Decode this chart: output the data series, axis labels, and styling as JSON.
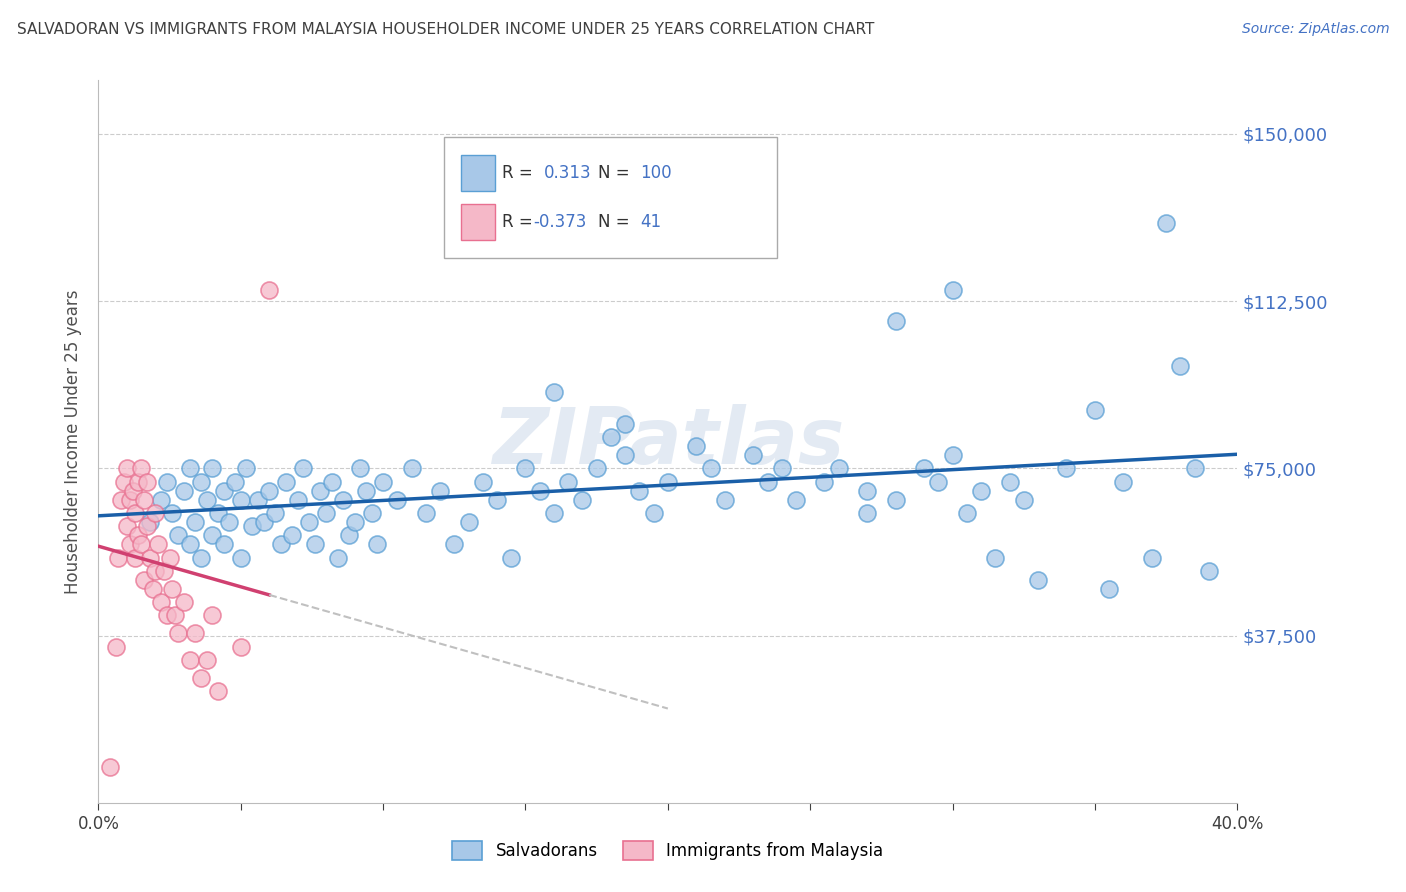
{
  "title": "SALVADORAN VS IMMIGRANTS FROM MALAYSIA HOUSEHOLDER INCOME UNDER 25 YEARS CORRELATION CHART",
  "source": "Source: ZipAtlas.com",
  "ylabel": "Householder Income Under 25 years",
  "xlim": [
    0.0,
    0.4
  ],
  "ylim": [
    0,
    162000
  ],
  "yticks": [
    0,
    37500,
    75000,
    112500,
    150000
  ],
  "ytick_labels_right": [
    "",
    "$37,500",
    "$75,000",
    "$112,500",
    "$150,000"
  ],
  "xticks": [
    0.0,
    0.05,
    0.1,
    0.15,
    0.2,
    0.25,
    0.3,
    0.35,
    0.4
  ],
  "blue_color": "#a8c8e8",
  "pink_color": "#f5b8c8",
  "blue_edge": "#5a9fd4",
  "pink_edge": "#e87090",
  "trend_blue": "#1a5fa8",
  "trend_pink": "#d04070",
  "trend_gray": "#c0c0c0",
  "watermark": "ZIPatlas",
  "blue_scatter_x": [
    0.018,
    0.022,
    0.024,
    0.026,
    0.028,
    0.03,
    0.032,
    0.032,
    0.034,
    0.036,
    0.036,
    0.038,
    0.04,
    0.04,
    0.042,
    0.044,
    0.044,
    0.046,
    0.048,
    0.05,
    0.05,
    0.052,
    0.054,
    0.056,
    0.058,
    0.06,
    0.062,
    0.064,
    0.066,
    0.068,
    0.07,
    0.072,
    0.074,
    0.076,
    0.078,
    0.08,
    0.082,
    0.084,
    0.086,
    0.088,
    0.09,
    0.092,
    0.094,
    0.096,
    0.098,
    0.1,
    0.105,
    0.11,
    0.115,
    0.12,
    0.125,
    0.13,
    0.135,
    0.14,
    0.145,
    0.15,
    0.155,
    0.16,
    0.165,
    0.17,
    0.175,
    0.18,
    0.185,
    0.19,
    0.195,
    0.2,
    0.21,
    0.215,
    0.22,
    0.23,
    0.235,
    0.24,
    0.245,
    0.255,
    0.26,
    0.27,
    0.28,
    0.29,
    0.295,
    0.3,
    0.305,
    0.31,
    0.315,
    0.32,
    0.325,
    0.33,
    0.34,
    0.355,
    0.36,
    0.37,
    0.375,
    0.38,
    0.385,
    0.39,
    0.27,
    0.28,
    0.3,
    0.35,
    0.16,
    0.185
  ],
  "blue_scatter_y": [
    63000,
    68000,
    72000,
    65000,
    60000,
    70000,
    58000,
    75000,
    63000,
    72000,
    55000,
    68000,
    75000,
    60000,
    65000,
    70000,
    58000,
    63000,
    72000,
    68000,
    55000,
    75000,
    62000,
    68000,
    63000,
    70000,
    65000,
    58000,
    72000,
    60000,
    68000,
    75000,
    63000,
    58000,
    70000,
    65000,
    72000,
    55000,
    68000,
    60000,
    63000,
    75000,
    70000,
    65000,
    58000,
    72000,
    68000,
    75000,
    65000,
    70000,
    58000,
    63000,
    72000,
    68000,
    55000,
    75000,
    70000,
    65000,
    72000,
    68000,
    75000,
    82000,
    78000,
    70000,
    65000,
    72000,
    80000,
    75000,
    68000,
    78000,
    72000,
    75000,
    68000,
    72000,
    75000,
    70000,
    68000,
    75000,
    72000,
    78000,
    65000,
    70000,
    55000,
    72000,
    68000,
    50000,
    75000,
    48000,
    72000,
    55000,
    130000,
    98000,
    75000,
    52000,
    65000,
    108000,
    115000,
    88000,
    92000,
    85000
  ],
  "pink_scatter_x": [
    0.004,
    0.006,
    0.007,
    0.008,
    0.009,
    0.01,
    0.01,
    0.011,
    0.011,
    0.012,
    0.013,
    0.013,
    0.014,
    0.014,
    0.015,
    0.015,
    0.016,
    0.016,
    0.017,
    0.017,
    0.018,
    0.019,
    0.02,
    0.02,
    0.021,
    0.022,
    0.023,
    0.024,
    0.025,
    0.026,
    0.027,
    0.028,
    0.03,
    0.032,
    0.034,
    0.036,
    0.038,
    0.04,
    0.042,
    0.05,
    0.06
  ],
  "pink_scatter_y": [
    8000,
    35000,
    55000,
    68000,
    72000,
    75000,
    62000,
    68000,
    58000,
    70000,
    65000,
    55000,
    72000,
    60000,
    75000,
    58000,
    68000,
    50000,
    62000,
    72000,
    55000,
    48000,
    65000,
    52000,
    58000,
    45000,
    52000,
    42000,
    55000,
    48000,
    42000,
    38000,
    45000,
    32000,
    38000,
    28000,
    32000,
    42000,
    25000,
    35000,
    115000
  ]
}
